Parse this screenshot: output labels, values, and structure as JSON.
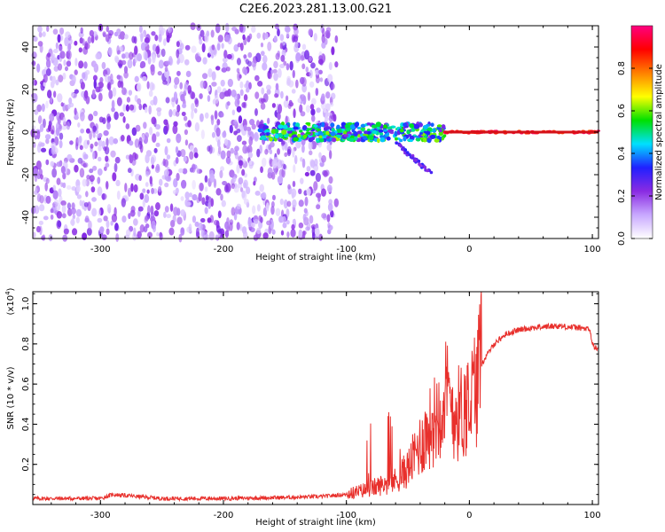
{
  "title": "C2E6.2023.281.13.00.G21",
  "colors": {
    "snr_line": "#e8302c",
    "baseline": "#d4121a",
    "axis": "#000000"
  },
  "chart_data": [
    {
      "type": "heatmap",
      "xlabel": "Height of straight line (km)",
      "ylabel": "Frequency (Hz)",
      "xlim": [
        -355,
        105
      ],
      "ylim": [
        -50,
        50
      ],
      "xticks": [
        -300,
        -200,
        -100,
        0,
        100
      ],
      "xtick_labels": [
        "-300",
        "-200",
        "-100",
        "0",
        "100"
      ],
      "yticks": [
        -40,
        -20,
        0,
        20,
        40
      ],
      "ytick_labels": [
        "-40",
        "-20",
        "0",
        "20",
        "40"
      ],
      "colorbar": {
        "label": "Normalized spectral amplitude",
        "range": [
          0,
          1
        ],
        "ticks": [
          0.0,
          0.2,
          0.4,
          0.6,
          0.8
        ],
        "tick_labels": [
          "0.0",
          "0.2",
          "0.4",
          "0.6",
          "0.8"
        ],
        "colormap": [
          "#ffffff",
          "#c8a8ff",
          "#8a2be2",
          "#2020ff",
          "#00e0ff",
          "#00e000",
          "#ffff00",
          "#ff8000",
          "#ff0000",
          "#ff0080"
        ]
      },
      "regions": [
        {
          "desc": "broadband noise",
          "x_range": [
            -355,
            -108
          ],
          "freq_range": [
            -50,
            50
          ],
          "amplitude": 0.1
        },
        {
          "desc": "signal tracking",
          "x_range": [
            -170,
            -20
          ],
          "freq_center": 0,
          "freq_halfwidth": 4,
          "amplitude": 0.35
        },
        {
          "desc": "side branch",
          "x_range": [
            -60,
            -30
          ],
          "freq_from": -5,
          "freq_to": -20,
          "amplitude": 0.25
        },
        {
          "desc": "strong signal",
          "x_range": [
            -20,
            105
          ],
          "freq_center": 0,
          "amplitude": 1.0
        }
      ]
    },
    {
      "type": "line",
      "xlabel": "Height of straight line (km)",
      "ylabel": "SNR (10 * v/v)",
      "y_multiplier": "(x10",
      "y_multiplier_exp": "4",
      "y_multiplier_close": ")",
      "xlim": [
        -355,
        105
      ],
      "ylim": [
        0,
        1.06
      ],
      "xticks": [
        -300,
        -200,
        -100,
        0,
        100
      ],
      "xtick_labels": [
        "-300",
        "-200",
        "-100",
        "0",
        "100"
      ],
      "yticks": [
        0.2,
        0.4,
        0.6,
        0.8,
        1.0
      ],
      "ytick_labels": [
        "0.2",
        "0.4",
        "0.6",
        "0.8",
        "1.0"
      ],
      "series": [
        {
          "x": [
            -355,
            -300,
            -290,
            -250,
            -200,
            -150,
            -120,
            -100,
            -80,
            -60,
            -50,
            -40,
            -30,
            -20,
            -10,
            0,
            10,
            20,
            30,
            40,
            50,
            60,
            70,
            80,
            90,
            98,
            100,
            102,
            105
          ],
          "y": [
            0.03,
            0.03,
            0.05,
            0.03,
            0.03,
            0.035,
            0.04,
            0.05,
            0.08,
            0.12,
            0.18,
            0.3,
            0.4,
            0.55,
            0.45,
            0.5,
            0.7,
            0.8,
            0.85,
            0.87,
            0.88,
            0.885,
            0.89,
            0.885,
            0.88,
            0.87,
            0.8,
            0.78,
            0.78
          ]
        }
      ]
    }
  ]
}
